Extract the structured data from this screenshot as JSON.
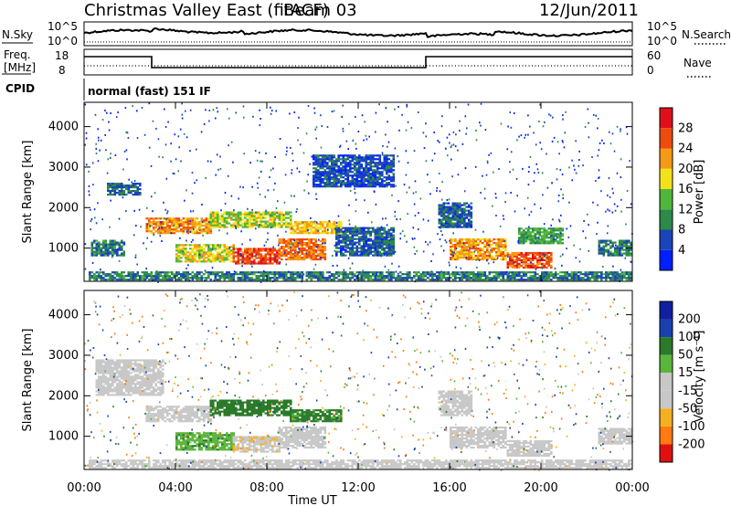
{
  "header": {
    "title": "Christmas Valley East (fitACF)",
    "beam": "Beam 03",
    "date": "12/Jun/2011"
  },
  "status_panels": {
    "nsky_label": "N.Sky",
    "nsearch_label": "N.Search",
    "noise_ticks": [
      "10^5",
      "10^0"
    ],
    "freq_label_1": "Freq.",
    "freq_label_2": "[MHz]",
    "freq_ticks": [
      "18",
      "8"
    ],
    "nave_label": "Nave",
    "nave_ticks": [
      "60",
      "0"
    ],
    "cpid_label": "CPID",
    "cpid_text": "normal (fast) 151 IF"
  },
  "colors": {
    "power": [
      "#0020ff",
      "#1a44b8",
      "#2d8a48",
      "#4fb63c",
      "#f2e21a",
      "#f59a14",
      "#ef4a10",
      "#e0101a"
    ],
    "velocity": [
      "#e01010",
      "#ff7a10",
      "#f5b020",
      "#c8c8c8",
      "#c8c8c8",
      "#5ab53c",
      "#2a7a2a",
      "#1a40b0",
      "#1020a0"
    ]
  },
  "chart_data": [
    {
      "type": "heatmap",
      "panel": "power",
      "ylabel": "Slant Range [km]",
      "xlabel": "",
      "x_ticks": [
        "00:00",
        "04:00",
        "08:00",
        "12:00",
        "16:00",
        "20:00",
        "00:00"
      ],
      "y_ticks": [
        1000,
        2000,
        3000,
        4000
      ],
      "xlim_hours": [
        0,
        24
      ],
      "ylim_km": [
        180,
        4600
      ],
      "colorbar": {
        "label": "Power [dB]",
        "ticks": [
          4,
          8,
          12,
          16,
          20,
          24,
          28
        ],
        "range": [
          0,
          32
        ]
      },
      "echo_regions": [
        {
          "t0": 0.2,
          "t1": 24.0,
          "r0": 200,
          "r1": 400,
          "value": 9
        },
        {
          "t0": 2.7,
          "t1": 5.5,
          "r0": 1350,
          "r1": 1750,
          "value": 22
        },
        {
          "t0": 5.5,
          "t1": 9.0,
          "r0": 1500,
          "r1": 1900,
          "value": 17
        },
        {
          "t0": 9.0,
          "t1": 11.2,
          "r0": 1350,
          "r1": 1650,
          "value": 20
        },
        {
          "t0": 4.0,
          "t1": 6.5,
          "r0": 650,
          "r1": 1100,
          "value": 18
        },
        {
          "t0": 6.5,
          "t1": 8.5,
          "r0": 600,
          "r1": 1000,
          "value": 27
        },
        {
          "t0": 8.5,
          "t1": 10.5,
          "r0": 700,
          "r1": 1200,
          "value": 24
        },
        {
          "t0": 0.3,
          "t1": 1.8,
          "r0": 800,
          "r1": 1200,
          "value": 9
        },
        {
          "t0": 1.0,
          "t1": 2.5,
          "r0": 2300,
          "r1": 2600,
          "value": 8
        },
        {
          "t0": 10.0,
          "t1": 13.5,
          "r0": 2500,
          "r1": 3300,
          "value": 6
        },
        {
          "t0": 11.0,
          "t1": 13.5,
          "r0": 800,
          "r1": 1500,
          "value": 7
        },
        {
          "t0": 15.5,
          "t1": 17.0,
          "r0": 1500,
          "r1": 2100,
          "value": 7
        },
        {
          "t0": 16.0,
          "t1": 18.5,
          "r0": 700,
          "r1": 1200,
          "value": 22
        },
        {
          "t0": 18.5,
          "t1": 20.5,
          "r0": 500,
          "r1": 900,
          "value": 26
        },
        {
          "t0": 19.0,
          "t1": 21.0,
          "r0": 1100,
          "r1": 1500,
          "value": 12
        },
        {
          "t0": 22.5,
          "t1": 24.0,
          "r0": 800,
          "r1": 1200,
          "value": 9
        }
      ]
    },
    {
      "type": "heatmap",
      "panel": "velocity",
      "ylabel": "Slant Range [km]",
      "xlabel": "Time UT",
      "x_ticks": [
        "00:00",
        "04:00",
        "08:00",
        "12:00",
        "16:00",
        "20:00",
        "00:00"
      ],
      "y_ticks": [
        1000,
        2000,
        3000,
        4000
      ],
      "xlim_hours": [
        0,
        24
      ],
      "ylim_km": [
        180,
        4600
      ],
      "colorbar": {
        "label": "Velocity [m s⁻¹]",
        "ticks": [
          -200,
          -100,
          -50,
          -15,
          15,
          50,
          100,
          200
        ]
      },
      "echo_regions": [
        {
          "t0": 0.2,
          "t1": 24.0,
          "r0": 200,
          "r1": 400,
          "value": 0
        },
        {
          "t0": 2.7,
          "t1": 5.5,
          "r0": 1350,
          "r1": 1750,
          "value": 0
        },
        {
          "t0": 5.5,
          "t1": 9.0,
          "r0": 1500,
          "r1": 1900,
          "value": 70
        },
        {
          "t0": 9.0,
          "t1": 11.2,
          "r0": 1350,
          "r1": 1650,
          "value": 60
        },
        {
          "t0": 4.0,
          "t1": 6.5,
          "r0": 650,
          "r1": 1100,
          "value": 40
        },
        {
          "t0": 6.5,
          "t1": 8.5,
          "r0": 600,
          "r1": 1000,
          "value": -40
        },
        {
          "t0": 8.5,
          "t1": 10.5,
          "r0": 700,
          "r1": 1200,
          "value": -30
        },
        {
          "t0": 16.0,
          "t1": 18.5,
          "r0": 700,
          "r1": 1200,
          "value": 0
        },
        {
          "t0": 18.5,
          "t1": 20.5,
          "r0": 500,
          "r1": 900,
          "value": 0
        },
        {
          "t0": 0.5,
          "t1": 3.5,
          "r0": 2000,
          "r1": 2900,
          "value": 0
        },
        {
          "t0": 15.5,
          "t1": 17.0,
          "r0": 1500,
          "r1": 2100,
          "value": 0
        },
        {
          "t0": 22.5,
          "t1": 24.0,
          "r0": 800,
          "r1": 1200,
          "value": 0
        }
      ]
    }
  ]
}
